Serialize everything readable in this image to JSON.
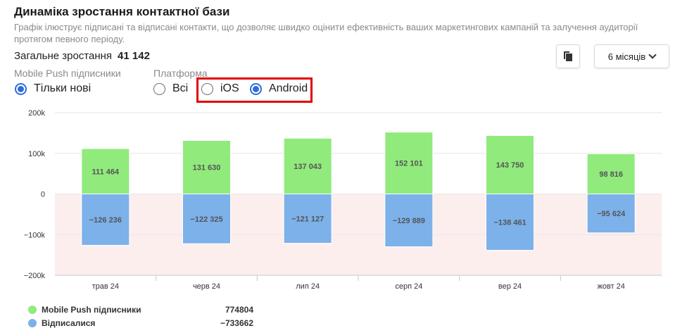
{
  "header": {
    "title": "Динаміка зростання контактної бази",
    "subtitle": "Графік ілюструє підписані та відписані контакти, що дозволяє швидко оцінити ефективність ваших маркетингових кампаній та залучення аудиторії протягом певного періоду.",
    "growth_label": "Загальне зростання",
    "growth_value": "41 142"
  },
  "controls": {
    "period_label": "6 місяців",
    "copy_icon": "copy-icon",
    "chevron_icon": "chevron-down-icon"
  },
  "filters": {
    "push_group": {
      "label": "Mobile Push підписники",
      "options": [
        {
          "label": "Тільки нові",
          "checked": true
        }
      ]
    },
    "platform_group": {
      "label": "Платформа",
      "options": [
        {
          "label": "Всі",
          "checked": false
        },
        {
          "label": "iOS",
          "checked": false
        },
        {
          "label": "Android",
          "checked": true
        }
      ]
    }
  },
  "chart_data": {
    "type": "bar",
    "stacked": true,
    "categories": [
      "трав 24",
      "черв 24",
      "лип 24",
      "серп 24",
      "вер 24",
      "жовт 24"
    ],
    "series": [
      {
        "name": "Mobile Push підписники",
        "color": "#90ea7c",
        "values": [
          111464,
          131630,
          137043,
          152101,
          143750,
          98816
        ],
        "labels": [
          "111 464",
          "131 630",
          "137 043",
          "152 101",
          "143 750",
          "98 816"
        ]
      },
      {
        "name": "Відписалися",
        "color": "#7cb1ea",
        "values": [
          -126236,
          -122325,
          -121127,
          -129889,
          -138461,
          -95624
        ],
        "labels": [
          "−126 236",
          "−122 325",
          "−121 127",
          "−129 889",
          "−138 461",
          "−95 624"
        ]
      }
    ],
    "ylim": [
      -200000,
      200000
    ],
    "yticks": [
      200000,
      100000,
      0,
      -100000,
      -200000
    ],
    "ytick_labels": [
      "200k",
      "100k",
      "0",
      "−100k",
      "−200k"
    ],
    "negative_zone_color": "#fdeeee",
    "grid": true,
    "legend_position": "bottom-left"
  },
  "legend": [
    {
      "name": "Mobile Push підписники",
      "color": "#90ea7c",
      "total": "774804"
    },
    {
      "name": "Відписалися",
      "color": "#7cb1ea",
      "total": "−733662"
    }
  ]
}
